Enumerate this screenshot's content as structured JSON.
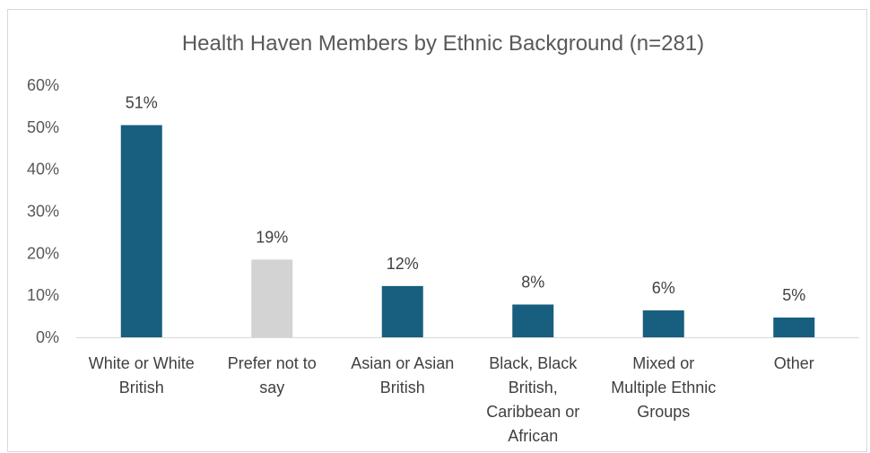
{
  "chart_data": {
    "type": "bar",
    "title": "Health Haven Members by Ethnic Background (n=281)",
    "categories": [
      [
        "White or White",
        "British"
      ],
      [
        "Prefer not to",
        "say"
      ],
      [
        "Asian or Asian",
        "British"
      ],
      [
        "Black, Black",
        "British,",
        "Caribbean or",
        "African"
      ],
      [
        "Mixed or",
        "Multiple Ethnic",
        "Groups"
      ],
      [
        "Other"
      ]
    ],
    "values": [
      51,
      19,
      12,
      8,
      6,
      5
    ],
    "data_labels": [
      "51%",
      "19%",
      "12%",
      "8%",
      "6%",
      "5%"
    ],
    "bar_values": [
      50.5,
      18.5,
      12.2,
      7.8,
      6.4,
      4.7
    ],
    "yticks": [
      "0%",
      "10%",
      "20%",
      "30%",
      "40%",
      "50%",
      "60%"
    ],
    "ylim": [
      0,
      60
    ],
    "grid": false,
    "colors": {
      "primary": "#175e7f",
      "highlight": "#d3d3d3",
      "highlight_index": 1
    }
  }
}
